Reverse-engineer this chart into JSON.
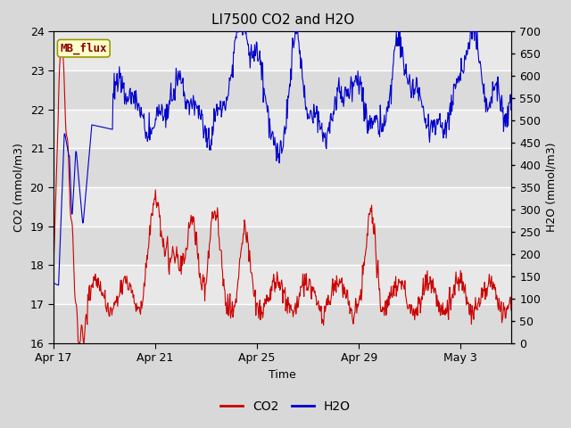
{
  "title": "LI7500 CO2 and H2O",
  "xlabel": "Time",
  "ylabel_left": "CO2 (mmol/m3)",
  "ylabel_right": "H2O (mmol/m3)",
  "co2_ylim": [
    16.0,
    24.0
  ],
  "h2o_ylim": [
    0,
    700
  ],
  "co2_yticks": [
    16.0,
    17.0,
    18.0,
    19.0,
    20.0,
    21.0,
    22.0,
    23.0,
    24.0
  ],
  "h2o_yticks": [
    0,
    50,
    100,
    150,
    200,
    250,
    300,
    350,
    400,
    450,
    500,
    550,
    600,
    650,
    700
  ],
  "xtick_positions": [
    0,
    4,
    8,
    12,
    16
  ],
  "xtick_labels": [
    "Apr 17",
    "Apr 21",
    "Apr 25",
    "Apr 29",
    "May 3"
  ],
  "xlim": [
    0,
    18
  ],
  "annotation_label": "MB_flux",
  "bg_color": "#d8d8d8",
  "plot_bg_color": "#e8e8e8",
  "co2_color": "#cc0000",
  "h2o_color": "#0000cc",
  "grid_color": "#ffffff",
  "title_fontsize": 11,
  "axis_label_fontsize": 9,
  "tick_fontsize": 9,
  "legend_fontsize": 10,
  "linewidth": 0.8
}
